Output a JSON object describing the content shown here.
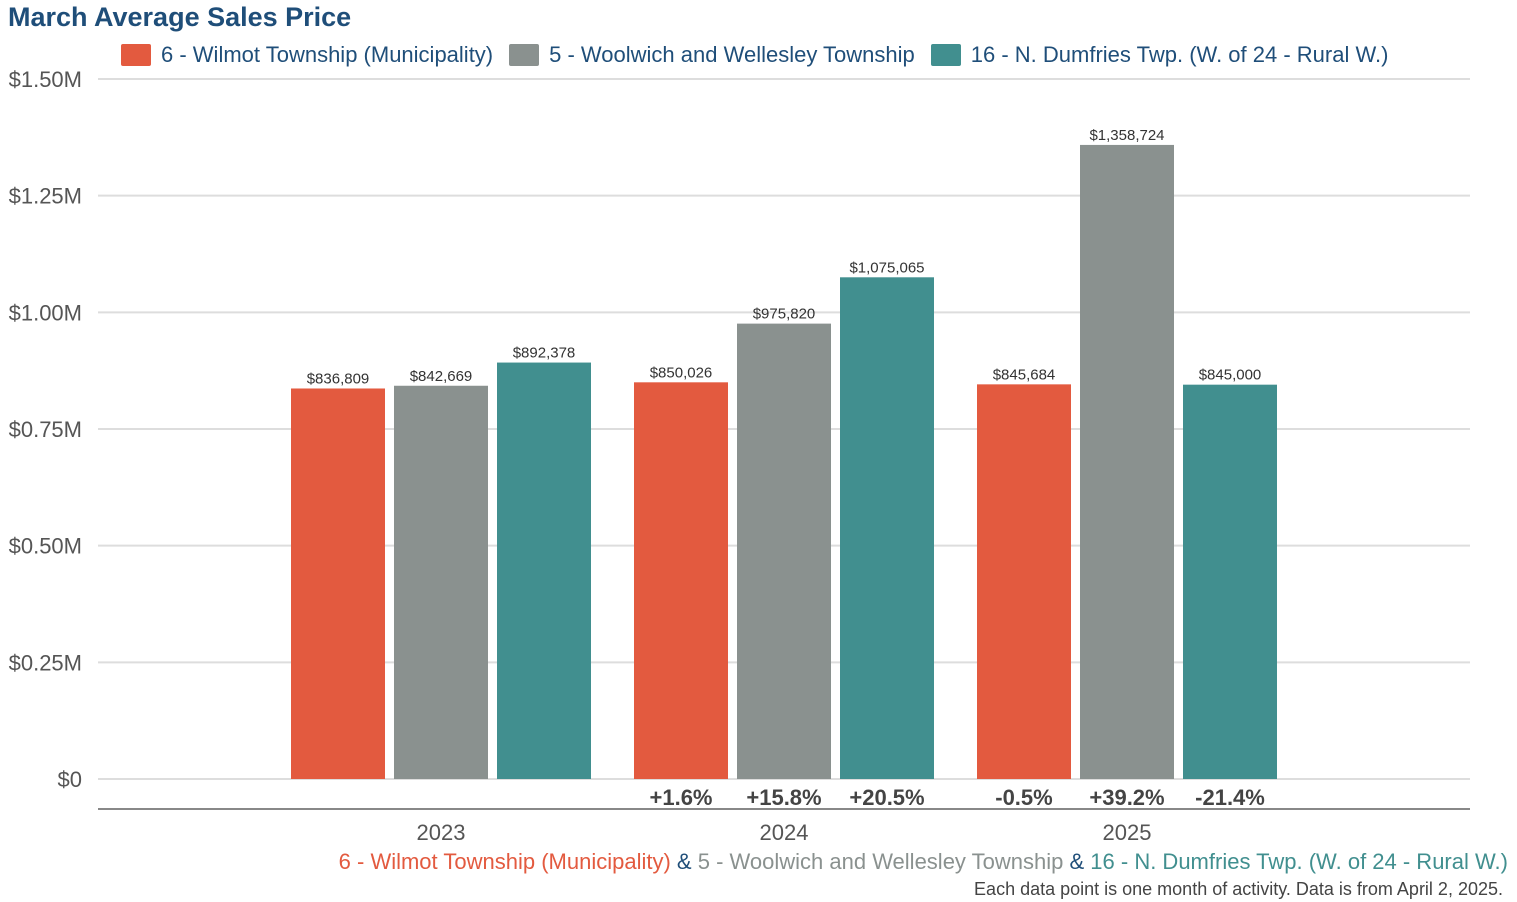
{
  "colors": {
    "title": "#1f4e79",
    "grid": "#dddddd",
    "axis": "#888888",
    "tick_text": "#555555",
    "value_label": "#333333",
    "change_label": "#444444"
  },
  "chart_data": {
    "type": "bar",
    "title": "March Average Sales Price",
    "categories": [
      "2023",
      "2024",
      "2025"
    ],
    "series": [
      {
        "name": "6 - Wilmot Township (Municipality)",
        "color": "#e35a3f",
        "values": [
          836809,
          850026,
          845684
        ],
        "value_labels": [
          "$836,809",
          "$850,026",
          "$845,684"
        ],
        "change_labels": [
          "",
          "+1.6%",
          "-0.5%"
        ]
      },
      {
        "name": "5 - Woolwich and Wellesley Township",
        "color": "#8a918f",
        "values": [
          842669,
          975820,
          1358724
        ],
        "value_labels": [
          "$842,669",
          "$975,820",
          "$1,358,724"
        ],
        "change_labels": [
          "",
          "+15.8%",
          "+39.2%"
        ]
      },
      {
        "name": "16 - N. Dumfries Twp. (W. of 24 - Rural W.)",
        "color": "#418f8f",
        "values": [
          892378,
          1075065,
          845000
        ],
        "value_labels": [
          "$892,378",
          "$1,075,065",
          "$845,000"
        ],
        "change_labels": [
          "",
          "+20.5%",
          "-21.4%"
        ]
      }
    ],
    "ylim": [
      0,
      1500000
    ],
    "yticks": [
      0,
      250000,
      500000,
      750000,
      1000000,
      1250000,
      1500000
    ],
    "ytick_labels": [
      "$0",
      "$0.25M",
      "$0.50M",
      "$0.75M",
      "$1.00M",
      "$1.25M",
      "$1.50M"
    ],
    "grid": true,
    "legend": "top"
  },
  "footer": {
    "ampersand": "&",
    "note": "Each data point is one month of activity. Data is from April 2, 2025."
  }
}
